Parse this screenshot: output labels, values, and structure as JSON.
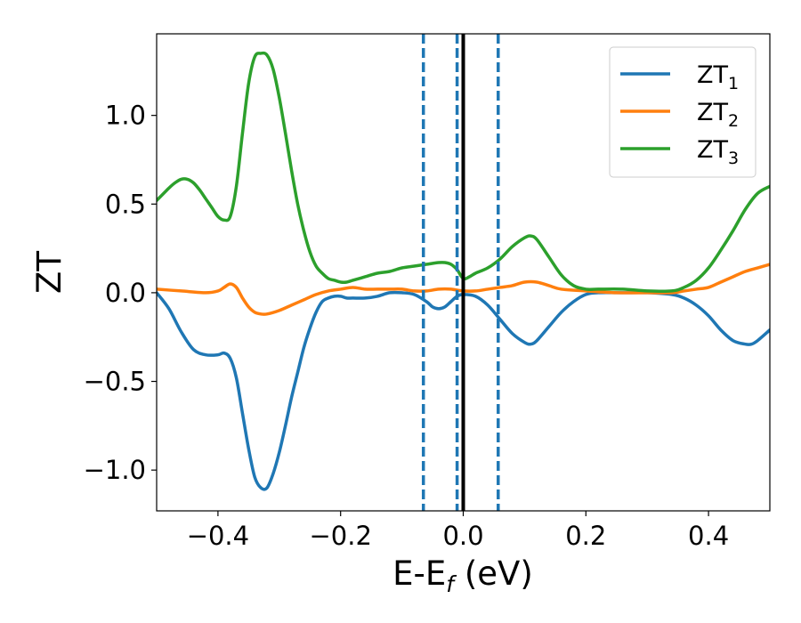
{
  "chart_data": {
    "type": "line",
    "xlabel_main": "E-E",
    "xlabel_sub": "f",
    "xlabel_unit": " (eV)",
    "ylabel": "ZT",
    "xlim": [
      -0.5,
      0.5
    ],
    "ylim": [
      -1.23,
      1.46
    ],
    "xticks": [
      -0.4,
      -0.2,
      0.0,
      0.2,
      0.4
    ],
    "xtick_labels": [
      "−0.4",
      "−0.2",
      "0.0",
      "0.2",
      "0.4"
    ],
    "yticks": [
      -1.0,
      -0.5,
      0.0,
      0.5,
      1.0
    ],
    "ytick_labels": [
      "−1.0",
      "−0.5",
      "0.0",
      "0.5",
      "1.0"
    ],
    "grid": false,
    "legend_position": "top-right",
    "vlines": [
      {
        "x": -0.065,
        "style": "dashed",
        "color": "#1f77b4"
      },
      {
        "x": -0.01,
        "style": "dashed",
        "color": "#1f77b4"
      },
      {
        "x": 0.0,
        "style": "solid",
        "color": "#000000"
      },
      {
        "x": 0.057,
        "style": "dashed",
        "color": "#1f77b4"
      }
    ],
    "series": [
      {
        "name": "ZT",
        "name_sub": "1",
        "color": "#1f77b4",
        "x": [
          -0.5,
          -0.48,
          -0.46,
          -0.44,
          -0.42,
          -0.4,
          -0.39,
          -0.38,
          -0.37,
          -0.36,
          -0.35,
          -0.34,
          -0.33,
          -0.32,
          -0.31,
          -0.3,
          -0.29,
          -0.28,
          -0.27,
          -0.26,
          -0.25,
          -0.24,
          -0.23,
          -0.22,
          -0.21,
          -0.2,
          -0.19,
          -0.18,
          -0.16,
          -0.14,
          -0.12,
          -0.1,
          -0.08,
          -0.06,
          -0.05,
          -0.04,
          -0.03,
          -0.02,
          -0.01,
          0.0,
          0.02,
          0.04,
          0.06,
          0.08,
          0.1,
          0.11,
          0.12,
          0.14,
          0.16,
          0.18,
          0.2,
          0.22,
          0.26,
          0.3,
          0.34,
          0.36,
          0.38,
          0.4,
          0.42,
          0.44,
          0.46,
          0.47,
          0.48,
          0.5
        ],
        "y": [
          0.0,
          -0.09,
          -0.22,
          -0.32,
          -0.35,
          -0.35,
          -0.34,
          -0.37,
          -0.48,
          -0.68,
          -0.88,
          -1.04,
          -1.1,
          -1.1,
          -1.02,
          -0.9,
          -0.75,
          -0.59,
          -0.45,
          -0.31,
          -0.2,
          -0.11,
          -0.05,
          -0.03,
          -0.02,
          -0.02,
          -0.03,
          -0.03,
          -0.03,
          -0.02,
          0.0,
          0.0,
          -0.01,
          -0.05,
          -0.08,
          -0.09,
          -0.08,
          -0.05,
          -0.02,
          -0.01,
          -0.02,
          -0.07,
          -0.15,
          -0.23,
          -0.28,
          -0.29,
          -0.27,
          -0.19,
          -0.11,
          -0.05,
          -0.01,
          0.0,
          0.0,
          0.0,
          -0.01,
          -0.03,
          -0.07,
          -0.13,
          -0.21,
          -0.27,
          -0.29,
          -0.29,
          -0.27,
          -0.21
        ]
      },
      {
        "name": "ZT",
        "name_sub": "2",
        "color": "#ff7f0e",
        "x": [
          -0.5,
          -0.46,
          -0.42,
          -0.4,
          -0.39,
          -0.38,
          -0.37,
          -0.36,
          -0.35,
          -0.34,
          -0.33,
          -0.32,
          -0.3,
          -0.28,
          -0.26,
          -0.24,
          -0.22,
          -0.2,
          -0.18,
          -0.16,
          -0.14,
          -0.12,
          -0.1,
          -0.08,
          -0.06,
          -0.04,
          -0.02,
          0.0,
          0.02,
          0.04,
          0.06,
          0.08,
          0.1,
          0.12,
          0.14,
          0.16,
          0.2,
          0.25,
          0.3,
          0.34,
          0.36,
          0.38,
          0.4,
          0.42,
          0.44,
          0.46,
          0.48,
          0.5
        ],
        "y": [
          0.02,
          0.01,
          0.0,
          0.01,
          0.03,
          0.05,
          0.03,
          -0.03,
          -0.08,
          -0.11,
          -0.12,
          -0.12,
          -0.1,
          -0.07,
          -0.04,
          -0.01,
          0.01,
          0.02,
          0.03,
          0.02,
          0.02,
          0.02,
          0.02,
          0.01,
          0.01,
          0.02,
          0.02,
          0.01,
          0.01,
          0.02,
          0.03,
          0.04,
          0.06,
          0.06,
          0.04,
          0.02,
          0.01,
          0.0,
          0.0,
          0.0,
          0.01,
          0.02,
          0.03,
          0.06,
          0.09,
          0.12,
          0.14,
          0.16
        ]
      },
      {
        "name": "ZT",
        "name_sub": "3",
        "color": "#2ca02c",
        "x": [
          -0.5,
          -0.48,
          -0.47,
          -0.46,
          -0.45,
          -0.44,
          -0.43,
          -0.42,
          -0.41,
          -0.4,
          -0.39,
          -0.38,
          -0.37,
          -0.36,
          -0.35,
          -0.34,
          -0.33,
          -0.32,
          -0.31,
          -0.3,
          -0.29,
          -0.28,
          -0.27,
          -0.26,
          -0.25,
          -0.24,
          -0.23,
          -0.22,
          -0.21,
          -0.2,
          -0.19,
          -0.18,
          -0.16,
          -0.14,
          -0.12,
          -0.1,
          -0.08,
          -0.06,
          -0.04,
          -0.03,
          -0.02,
          -0.01,
          0.0,
          0.01,
          0.02,
          0.04,
          0.06,
          0.08,
          0.1,
          0.11,
          0.12,
          0.14,
          0.16,
          0.18,
          0.2,
          0.22,
          0.26,
          0.3,
          0.34,
          0.36,
          0.38,
          0.4,
          0.42,
          0.44,
          0.46,
          0.48,
          0.5
        ],
        "y": [
          0.52,
          0.59,
          0.62,
          0.64,
          0.64,
          0.62,
          0.58,
          0.53,
          0.48,
          0.43,
          0.41,
          0.43,
          0.6,
          0.9,
          1.18,
          1.33,
          1.35,
          1.34,
          1.26,
          1.1,
          0.9,
          0.69,
          0.5,
          0.35,
          0.23,
          0.15,
          0.11,
          0.08,
          0.07,
          0.06,
          0.06,
          0.07,
          0.09,
          0.11,
          0.12,
          0.14,
          0.15,
          0.16,
          0.17,
          0.17,
          0.16,
          0.13,
          0.08,
          0.09,
          0.11,
          0.14,
          0.19,
          0.26,
          0.31,
          0.32,
          0.3,
          0.2,
          0.1,
          0.04,
          0.02,
          0.02,
          0.02,
          0.01,
          0.01,
          0.03,
          0.07,
          0.14,
          0.24,
          0.35,
          0.47,
          0.56,
          0.6
        ]
      }
    ]
  }
}
